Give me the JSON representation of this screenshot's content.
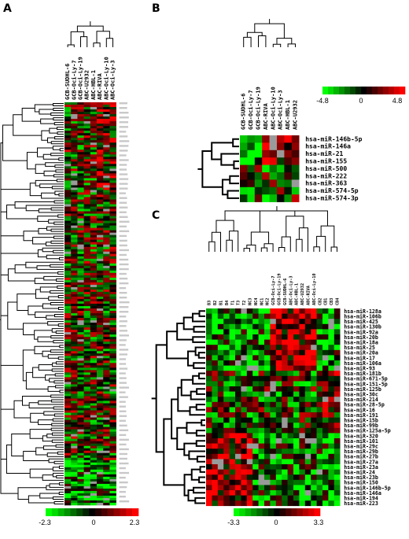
{
  "panels": {
    "A": {
      "letter": "A",
      "samples": [
        "GCB-SUDHL-6",
        "GCB-Oci-Ly-7",
        "GCB-Oci-Ly-19",
        "ABC-U2932",
        "ABC-HBL-1",
        "ABC-RIVA",
        "ABC-Oci-Ly-10",
        "ABC-Oci-Ly-3"
      ],
      "n_rows": 170,
      "scale": {
        "min": "-2.3",
        "mid": "0",
        "max": "2.3"
      }
    },
    "B": {
      "letter": "B",
      "samples": [
        "GCB-SUDHL-6",
        "GCB-Oci-Ly-7",
        "GCB-Oci-Ly-19",
        "ABC-RIVA",
        "ABC-Oci-Ly-10",
        "ABC-Oci-Ly-3",
        "ABC-HBL-1",
        "ABC-U2932"
      ],
      "mirnas": [
        "hsa-miR-146b-5p",
        "hsa-miR-146a",
        "hsa-miR-21",
        "hsa-miR-155",
        "hsa-miR-500",
        "hsa-miR-222",
        "hsa-miR-363",
        "hsa-miR-574-5p",
        "hsa-miR-574-3p"
      ],
      "scale": {
        "min": "-4.8",
        "mid": "0",
        "max": "4.8"
      }
    },
    "C": {
      "letter": "C",
      "samples": [
        "B3",
        "B2",
        "B1",
        "B4",
        "T1",
        "T3",
        "T2",
        "NC3",
        "NC4",
        "NC1",
        "NC2",
        "GCB-Oci-Ly-7",
        "GCB-Oci-Ly-19",
        "GCB-SUDHL-6",
        "ABC-Oci-Ly-3",
        "ABC-HBL-1",
        "ABC-U2932",
        "ABC-RIVA",
        "ABC-Oci-Ly-10",
        "CB2",
        "CB1",
        "CB3",
        "CB4"
      ],
      "mirnas": [
        "hsa-miR-128a",
        "hsa-miR-106b",
        "hsa-miR-425",
        "hsa-miR-130b",
        "hsa-miR-92a",
        "hsa-miR-20b",
        "hsa-miR-18a",
        "hsa-miR-25",
        "hsa-miR-20a",
        "hsa-miR-17",
        "hsa-miR-106a",
        "hsa-miR-93",
        "hsa-miR-181b",
        "hsa-miR-671-5p",
        "hsa-miR-151-5p",
        "hsa-miR-125b",
        "hsa-miR-30c",
        "hsa-miR-214",
        "hsa-miR-28-5p",
        "hsa-miR-16",
        "hsa-miR-191",
        "hsa-miR-15b",
        "hsa-miR-99b",
        "hsa-miR-125a-5p",
        "hsa-miR-320",
        "hsa-miR-101",
        "hsa-miR-29c",
        "hsa-miR-29b",
        "hsa-miR-27b",
        "hsa-miR-27a",
        "hsa-miR-23a",
        "hsa-miR-24",
        "hsa-miR-23b",
        "hsa-miR-150",
        "hsa-miR-146b-5p",
        "hsa-miR-146a",
        "hsa-miR-194",
        "hsa-miR-223"
      ],
      "scale": {
        "min": "-3.3",
        "mid": "0",
        "max": "3.3"
      }
    }
  },
  "colors": {
    "low": "#00ff00",
    "mid": "#000000",
    "high": "#ff0000",
    "missing": "#9a9a9a"
  }
}
